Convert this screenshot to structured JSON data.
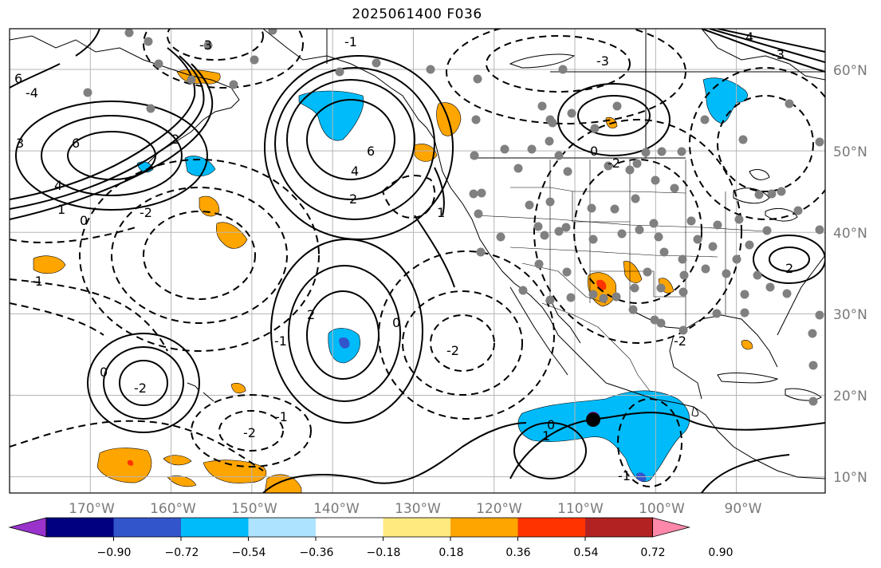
{
  "title": "2025061400 F036",
  "map": {
    "lon_range": [
      -180,
      -79
    ],
    "lat_range": [
      8,
      65
    ],
    "projection": "PlateCarree",
    "land_outline_color": "#000000",
    "gridlines": true,
    "lon_labels": [
      "170°W",
      "160°W",
      "150°W",
      "140°W",
      "130°W",
      "120°W",
      "110°W",
      "100°W",
      "90°W"
    ],
    "lat_labels": [
      "60°N",
      "50°N",
      "40°N",
      "30°N",
      "20°N",
      "10°N"
    ],
    "contour_labels": [
      "6",
      "4",
      "3",
      "2",
      "1",
      "0",
      "-1",
      "-2",
      "-3",
      "-4",
      "6",
      "4",
      "2",
      "1",
      "0",
      "-1",
      "-2",
      "-3",
      "-2",
      "2",
      "0",
      "-1",
      "-2",
      "0",
      "-2",
      "-1",
      "1",
      "0",
      "-1",
      "2",
      "-2",
      "4",
      "-3",
      "6"
    ],
    "station_marker_color": "#808080",
    "highlight_marker_color": "#000000"
  },
  "colorbar": {
    "colors": [
      "#9933cc",
      "#000080",
      "#3355cc",
      "#00bbf9",
      "#aee3ff",
      "#ffffff",
      "#ffea80",
      "#ffa500",
      "#ff3300",
      "#b22222",
      "#ff88aa"
    ],
    "ticks": [
      "−0.90",
      "−0.72",
      "−0.54",
      "−0.36",
      "−0.18",
      "0.18",
      "0.36",
      "0.54",
      "0.72",
      "0.90"
    ],
    "extend": "both"
  }
}
